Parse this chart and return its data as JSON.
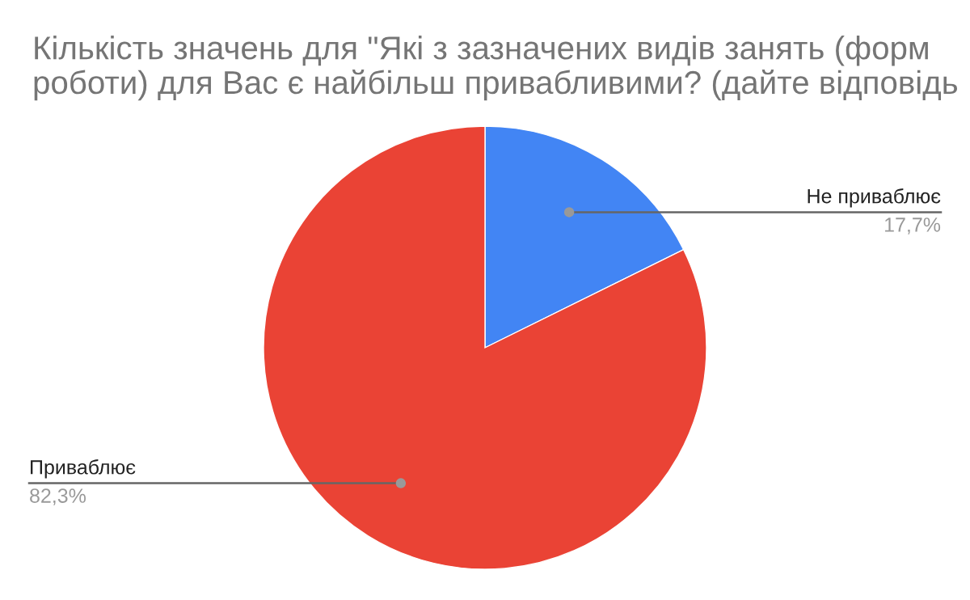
{
  "chart_data": {
    "type": "pie",
    "title": "Кількість значень для \"Які з зазначених видів занять (форм роботи) для Вас є найбільш привабливими? (дайте відповідь",
    "categories": [
      "Не приваблює",
      "Приваблює"
    ],
    "values": [
      17.7,
      82.3
    ],
    "colors": [
      "#4285f4",
      "#ea4335"
    ],
    "value_labels": [
      "17,7%",
      "82,3%"
    ]
  }
}
